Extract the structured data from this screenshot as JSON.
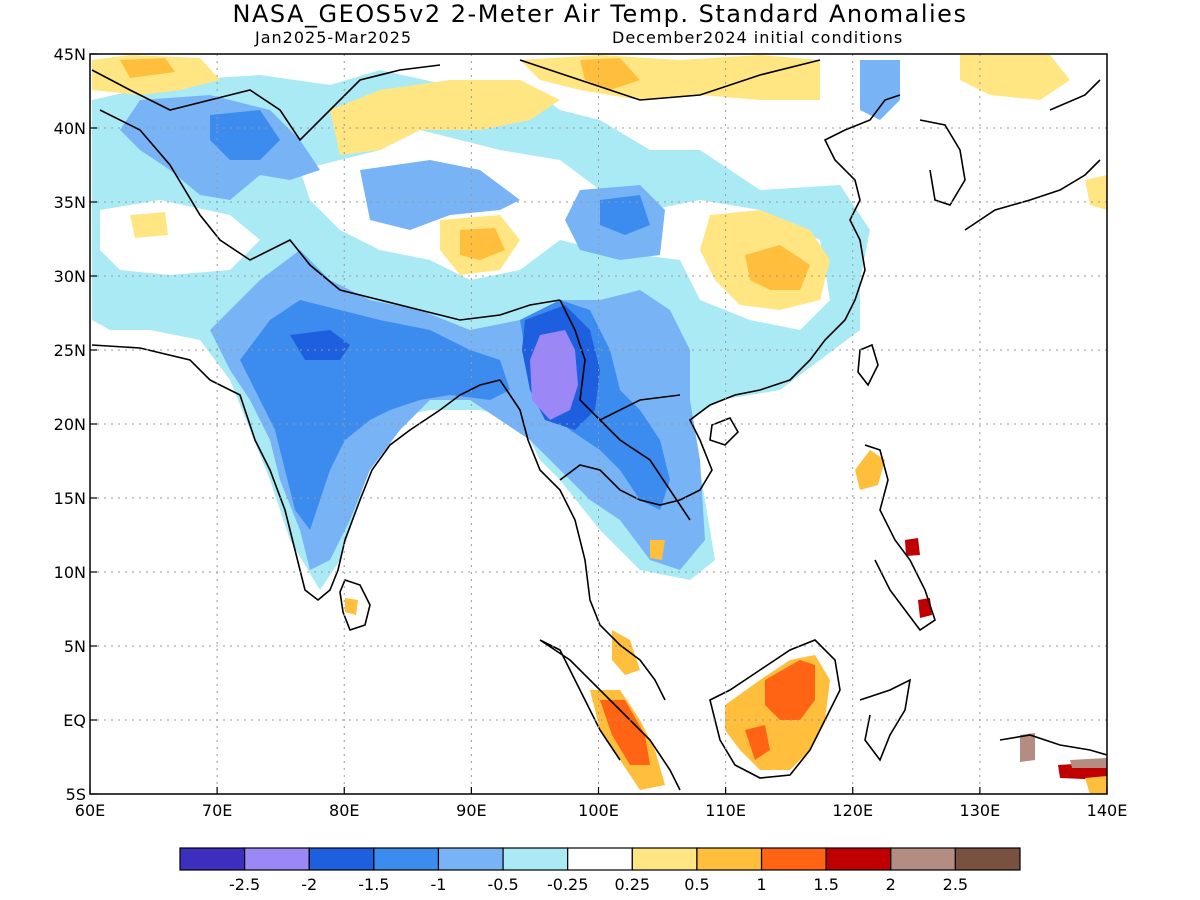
{
  "title": "NASA_GEOS5v2 2-Meter Air Temp. Standard Anomalies",
  "subtitle_left": "Jan2025-Mar2025",
  "subtitle_right": "December2024 initial conditions",
  "map": {
    "lon_range": [
      60,
      140
    ],
    "lat_range": [
      -5,
      45
    ],
    "lon_ticks": [
      {
        "value": 60,
        "label": "60E"
      },
      {
        "value": 70,
        "label": "70E"
      },
      {
        "value": 80,
        "label": "80E"
      },
      {
        "value": 90,
        "label": "90E"
      },
      {
        "value": 100,
        "label": "100E"
      },
      {
        "value": 110,
        "label": "110E"
      },
      {
        "value": 120,
        "label": "120E"
      },
      {
        "value": 130,
        "label": "130E"
      },
      {
        "value": 140,
        "label": "140E"
      }
    ],
    "lat_ticks": [
      {
        "value": 45,
        "label": "45N"
      },
      {
        "value": 40,
        "label": "40N"
      },
      {
        "value": 35,
        "label": "35N"
      },
      {
        "value": 30,
        "label": "30N"
      },
      {
        "value": 25,
        "label": "25N"
      },
      {
        "value": 20,
        "label": "20N"
      },
      {
        "value": 15,
        "label": "15N"
      },
      {
        "value": 10,
        "label": "10N"
      },
      {
        "value": 5,
        "label": "5N"
      },
      {
        "value": 0,
        "label": "EQ"
      },
      {
        "value": -5,
        "label": "5S"
      }
    ],
    "grid": "dotted"
  },
  "colorbar": {
    "colors": [
      "#3c2fbe",
      "#9b87f5",
      "#1e5fe0",
      "#3c8cf0",
      "#78b4f5",
      "#aaeaf5",
      "#ffffff",
      "#ffe682",
      "#ffbe3c",
      "#ff6414",
      "#c00000",
      "#b48c82",
      "#7a5040"
    ],
    "labels": [
      "-2.5",
      "-2",
      "-1.5",
      "-1",
      "-0.5",
      "-0.25",
      "0.25",
      "0.5",
      "1",
      "1.5",
      "2",
      "2.5"
    ]
  }
}
